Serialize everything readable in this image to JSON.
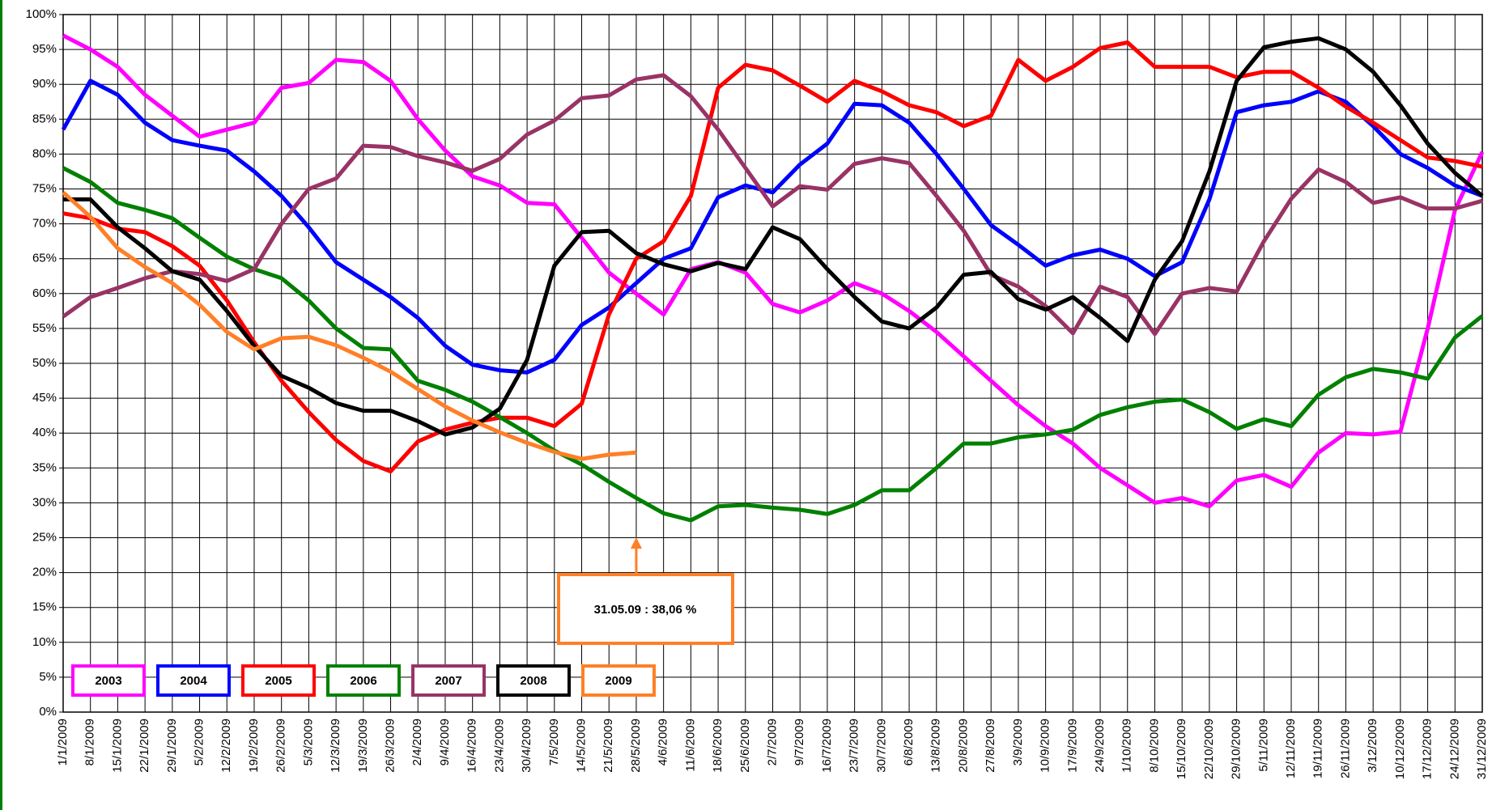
{
  "chart_data": {
    "type": "line",
    "categories": [
      "1/1/2009",
      "8/1/2009",
      "15/1/2009",
      "22/1/2009",
      "29/1/2009",
      "5/2/2009",
      "12/2/2009",
      "19/2/2009",
      "26/2/2009",
      "5/3/2009",
      "12/3/2009",
      "19/3/2009",
      "26/3/2009",
      "2/4/2009",
      "9/4/2009",
      "16/4/2009",
      "23/4/2009",
      "30/4/2009",
      "7/5/2009",
      "14/5/2009",
      "21/5/2009",
      "28/5/2009",
      "4/6/2009",
      "11/6/2009",
      "18/6/2009",
      "25/6/2009",
      "2/7/2009",
      "9/7/2009",
      "16/7/2009",
      "23/7/2009",
      "30/7/2009",
      "6/8/2009",
      "13/8/2009",
      "20/8/2009",
      "27/8/2009",
      "3/9/2009",
      "10/9/2009",
      "17/9/2009",
      "24/9/2009",
      "1/10/2009",
      "8/10/2009",
      "15/10/2009",
      "22/10/2009",
      "29/10/2009",
      "5/11/2009",
      "12/11/2009",
      "19/11/2009",
      "26/11/2009",
      "3/12/2009",
      "10/12/2009",
      "17/12/2009",
      "24/12/2009",
      "31/12/2009"
    ],
    "series": [
      {
        "name": "2003",
        "color": "#ff00ff",
        "values": [
          97,
          95,
          92.5,
          88.5,
          85.5,
          82.5,
          83.5,
          84.5,
          89.5,
          90.2,
          93.5,
          93.2,
          90.5,
          85,
          80.5,
          76.8,
          75.5,
          73,
          72.8,
          68,
          63,
          60,
          57,
          63.5,
          64.5,
          63,
          58.5,
          57.3,
          59,
          61.5,
          60,
          57.5,
          54.5,
          51,
          47.5,
          44,
          41,
          38.5,
          35,
          32.5,
          30,
          30.7,
          29.5,
          33.2,
          34,
          32.3,
          37.2,
          40,
          39.8,
          40.2,
          55,
          72,
          80.3
        ]
      },
      {
        "name": "2004",
        "color": "#0000ff",
        "values": [
          83.5,
          90.5,
          88.5,
          84.5,
          82,
          81.2,
          80.5,
          77.5,
          74,
          69.5,
          64.5,
          62,
          59.5,
          56.5,
          52.5,
          49.8,
          49,
          48.7,
          50.5,
          55.5,
          58,
          61.5,
          65,
          66.5,
          73.8,
          75.5,
          74.5,
          78.5,
          81.5,
          87.2,
          87,
          84.5,
          80,
          75,
          69.8,
          67,
          64,
          65.5,
          66.3,
          65,
          62.5,
          64.5,
          73.5,
          86,
          87,
          87.5,
          89,
          87.5,
          84,
          80,
          78,
          75.5,
          74
        ]
      },
      {
        "name": "2005",
        "color": "#ff0000",
        "values": [
          71.5,
          70.8,
          69.3,
          68.8,
          66.8,
          64,
          59,
          53,
          47.5,
          43,
          39,
          36,
          34.5,
          38.8,
          40.5,
          41.5,
          42.2,
          42.2,
          41,
          44.2,
          57,
          65,
          67.5,
          74,
          89.5,
          92.8,
          92,
          89.8,
          87.5,
          90.5,
          89,
          87,
          86,
          84,
          85.5,
          93.5,
          90.5,
          92.5,
          95.2,
          96,
          92.5,
          92.5,
          92.5,
          91,
          91.8,
          91.8,
          89.5,
          86.8,
          84.5,
          82,
          79.5,
          79,
          78.2
        ]
      },
      {
        "name": "2006",
        "color": "#008000",
        "values": [
          78,
          76,
          73,
          72,
          70.8,
          68,
          65.3,
          63.5,
          62.2,
          59,
          55,
          52.2,
          52,
          47.5,
          46.2,
          44.5,
          42.3,
          40,
          37.5,
          35.5,
          33,
          30.7,
          28.5,
          27.5,
          29.5,
          29.7,
          29.3,
          29,
          28.4,
          29.7,
          31.8,
          31.8,
          35,
          38.5,
          38.5,
          39.4,
          39.8,
          40.5,
          42.6,
          43.7,
          44.5,
          44.8,
          43,
          40.6,
          42,
          41,
          45.5,
          48,
          49.2,
          48.7,
          47.8,
          53.7,
          56.8
        ]
      },
      {
        "name": "2007",
        "color": "#993366",
        "values": [
          56.7,
          59.5,
          60.8,
          62.2,
          63.2,
          62.8,
          61.8,
          63.5,
          70,
          75,
          76.5,
          81.2,
          81,
          79.7,
          78.8,
          77.6,
          79.3,
          82.8,
          84.8,
          88,
          88.4,
          90.7,
          91.3,
          88.3,
          83.5,
          78,
          72.5,
          75.4,
          74.9,
          78.6,
          79.4,
          78.7,
          74,
          69,
          62.7,
          61,
          58.2,
          54.3,
          61,
          59.5,
          54.2,
          60,
          60.8,
          60.3,
          67.5,
          73.6,
          77.8,
          76,
          73,
          73.8,
          72.2,
          72.2,
          73.3
        ]
      },
      {
        "name": "2008",
        "color": "#000000",
        "values": [
          73.5,
          73.5,
          69.5,
          66.5,
          63.2,
          62,
          57.5,
          52.5,
          48.2,
          46.5,
          44.3,
          43.2,
          43.2,
          41.7,
          39.8,
          40.8,
          43.5,
          50.5,
          64,
          68.8,
          69,
          65.8,
          64.2,
          63.2,
          64.4,
          63.5,
          69.5,
          67.8,
          63.5,
          59.5,
          56,
          55,
          58,
          62.7,
          63.1,
          59.2,
          57.7,
          59.5,
          56.5,
          53.2,
          62,
          67.5,
          77.5,
          90.5,
          95.3,
          96.1,
          96.6,
          95,
          91.8,
          87,
          81.5,
          77.3,
          74
        ]
      },
      {
        "name": "2009",
        "color": "#ff7f27",
        "values": [
          74.5,
          71,
          66.5,
          63.8,
          61.5,
          58.4,
          54.5,
          52,
          53.6,
          53.8,
          52.6,
          50.8,
          48.8,
          46.3,
          43.8,
          41.8,
          40.1,
          38.6,
          37.3,
          36.3,
          36.9,
          37.2,
          null,
          null,
          null,
          null,
          null,
          null,
          null,
          null,
          null,
          null,
          null,
          null,
          null,
          null,
          null,
          null,
          null,
          null,
          null,
          null,
          null,
          null,
          null,
          null,
          null,
          null,
          null,
          null,
          null,
          null,
          null
        ]
      }
    ],
    "ylim": [
      0,
      100
    ],
    "yticks": [
      {
        "value": 0,
        "label": "0%"
      },
      {
        "value": 5,
        "label": "5%"
      },
      {
        "value": 10,
        "label": "10%"
      },
      {
        "value": 15,
        "label": "15%"
      },
      {
        "value": 20,
        "label": "20%"
      },
      {
        "value": 25,
        "label": "25%"
      },
      {
        "value": 30,
        "label": "30%"
      },
      {
        "value": 35,
        "label": "35%"
      },
      {
        "value": 40,
        "label": "40%"
      },
      {
        "value": 45,
        "label": "45%"
      },
      {
        "value": 50,
        "label": "50%"
      },
      {
        "value": 55,
        "label": "55%"
      },
      {
        "value": 60,
        "label": "60%"
      },
      {
        "value": 65,
        "label": "65%"
      },
      {
        "value": 70,
        "label": "70%"
      },
      {
        "value": 75,
        "label": "75%"
      },
      {
        "value": 80,
        "label": "80%"
      },
      {
        "value": 85,
        "label": "85%"
      },
      {
        "value": 90,
        "label": "90%"
      },
      {
        "value": 95,
        "label": "95%"
      },
      {
        "value": 100,
        "label": "100%"
      }
    ],
    "grid": true,
    "legend_position": "lower left",
    "annotation": "31.05.09 : 38,06 %"
  }
}
